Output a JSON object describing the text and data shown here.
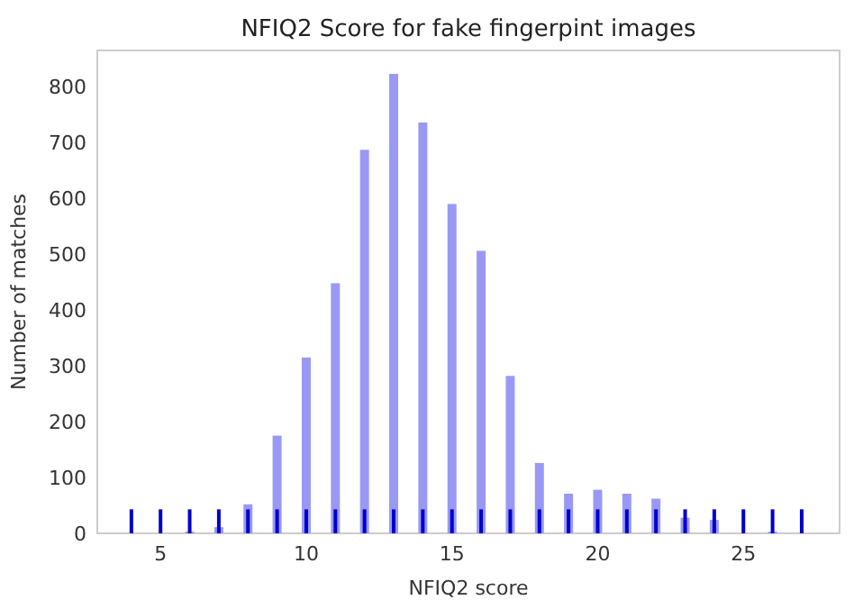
{
  "chart_data": {
    "type": "bar",
    "title": "NFIQ2 Score for fake fingerpint images",
    "xlabel": "NFIQ2 score",
    "ylabel": "Number of matches",
    "x": [
      4,
      5,
      6,
      7,
      8,
      9,
      10,
      11,
      12,
      13,
      14,
      15,
      16,
      17,
      18,
      19,
      20,
      21,
      22,
      23,
      24,
      25,
      26,
      27
    ],
    "series": [
      {
        "color": "#9999f5",
        "values": [
          null,
          null,
          3,
          11,
          52,
          175,
          315,
          448,
          687,
          823,
          736,
          590,
          506,
          282,
          126,
          71,
          78,
          71,
          62,
          28,
          24,
          null,
          3,
          null
        ]
      },
      {
        "color": "#0000cc",
        "values": [
          43,
          43,
          43,
          43,
          43,
          43,
          43,
          43,
          43,
          43,
          43,
          43,
          43,
          43,
          43,
          43,
          43,
          43,
          43,
          43,
          43,
          43,
          43,
          43
        ]
      }
    ],
    "xlim": [
      2.83,
      28.3
    ],
    "ylim": [
      0,
      865
    ],
    "xticks": [
      5,
      10,
      15,
      20,
      25
    ],
    "yticks": [
      0,
      100,
      200,
      300,
      400,
      500,
      600,
      700,
      800
    ],
    "grid": false
  }
}
